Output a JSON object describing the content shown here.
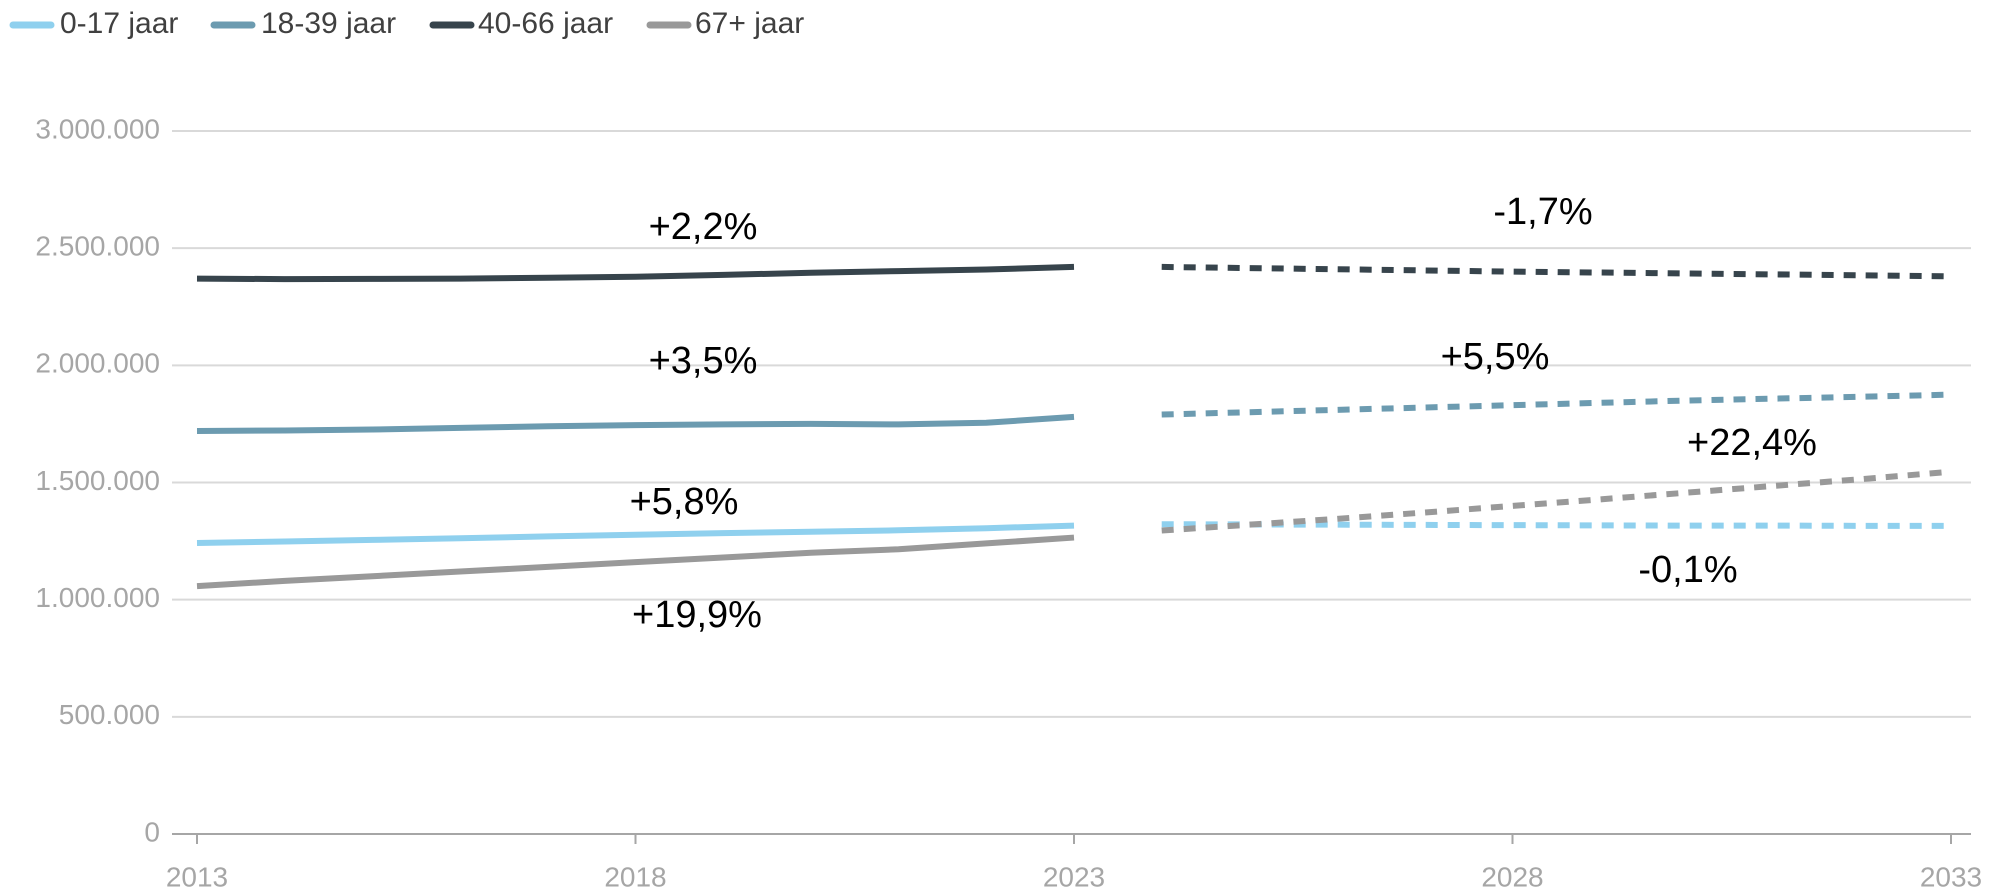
{
  "chart_data": {
    "type": "line",
    "x": [
      2013,
      2014,
      2015,
      2016,
      2017,
      2018,
      2019,
      2020,
      2021,
      2022,
      2023,
      2024,
      2025,
      2026,
      2027,
      2028,
      2029,
      2030,
      2031,
      2032,
      2033
    ],
    "xlim": [
      2013,
      2033
    ],
    "xticks": [
      2013,
      2018,
      2023,
      2028,
      2033
    ],
    "ylim": [
      0,
      3000000
    ],
    "yticks": [
      0,
      {
        "value": 500000,
        "label": "500.000"
      },
      {
        "value": 1000000,
        "label": "1.000.000"
      },
      {
        "value": 1500000,
        "label": "1.500.000"
      },
      {
        "value": 2000000,
        "label": "2.000.000"
      },
      {
        "value": 2500000,
        "label": "2.500.000"
      },
      {
        "value": 3000000,
        "label": "3.000.000"
      }
    ],
    "grid": true,
    "legend": "top",
    "series": [
      {
        "name": "0-17 jaar",
        "color": "#8fd0ee",
        "values": [
          1242000,
          1248000,
          1255000,
          1262000,
          1270000,
          1277000,
          1284000,
          1290000,
          1296000,
          1305000,
          1316000,
          null,
          null,
          null,
          null,
          null,
          null,
          null,
          null,
          null,
          null
        ],
        "forecast": [
          null,
          null,
          null,
          null,
          null,
          null,
          null,
          null,
          null,
          null,
          null,
          1322000,
          1321000,
          1320000,
          1319000,
          1318000,
          1317000,
          1316000,
          1316000,
          1315000,
          1315000
        ]
      },
      {
        "name": "18-39 jaar",
        "color": "#6c9bb0",
        "values": [
          1720000,
          1722000,
          1726000,
          1733000,
          1740000,
          1745000,
          1748000,
          1750000,
          1748000,
          1755000,
          1780000,
          null,
          null,
          null,
          null,
          null,
          null,
          null,
          null,
          null,
          null
        ],
        "forecast": [
          null,
          null,
          null,
          null,
          null,
          null,
          null,
          null,
          null,
          null,
          null,
          1790000,
          1800000,
          1810000,
          1820000,
          1830000,
          1840000,
          1850000,
          1858000,
          1866000,
          1875000
        ]
      },
      {
        "name": "40-66 jaar",
        "color": "#37444c",
        "values": [
          2370000,
          2368000,
          2369000,
          2370000,
          2374000,
          2378000,
          2386000,
          2395000,
          2402000,
          2409000,
          2420000,
          null,
          null,
          null,
          null,
          null,
          null,
          null,
          null,
          null,
          null
        ],
        "forecast": [
          null,
          null,
          null,
          null,
          null,
          null,
          null,
          null,
          null,
          null,
          null,
          2420000,
          2415000,
          2410000,
          2405000,
          2400000,
          2396000,
          2392000,
          2388000,
          2384000,
          2380000
        ]
      },
      {
        "name": "67+ jaar",
        "color": "#999999",
        "values": [
          1058000,
          1080000,
          1100000,
          1120000,
          1140000,
          1160000,
          1180000,
          1200000,
          1215000,
          1240000,
          1265000,
          null,
          null,
          null,
          null,
          null,
          null,
          null,
          null,
          null,
          null
        ],
        "forecast": [
          null,
          null,
          null,
          null,
          null,
          null,
          null,
          null,
          null,
          null,
          null,
          1295000,
          1320000,
          1345000,
          1372000,
          1400000,
          1428000,
          1457000,
          1486000,
          1515000,
          1546000
        ]
      }
    ],
    "annotations": [
      "+2,2%",
      "-1,7%",
      "+3,5%",
      "+5,5%",
      "+22,4%",
      "+5,8%",
      "-0,1%",
      "+19,9%"
    ]
  }
}
